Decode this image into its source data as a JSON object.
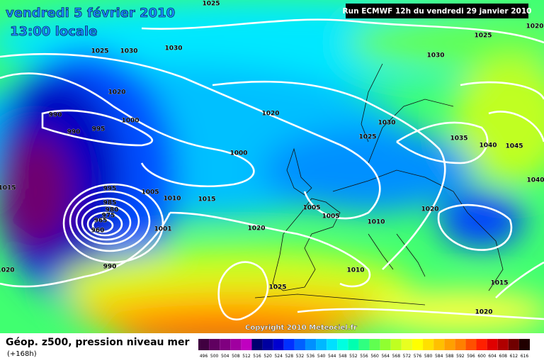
{
  "header": {
    "date": "vendredi 5 février 2010",
    "time": "13:00 locale",
    "run": "Run ECMWF 12h du vendredi 29 janvier 2010"
  },
  "copyright": "Copyright 2010 Meteociel.fr",
  "legend": {
    "title": "Géop. z500, pression niveau mer",
    "subtitle": "(+168h)",
    "scale": [
      496,
      500,
      504,
      508,
      512,
      516,
      520,
      524,
      528,
      532,
      536,
      540,
      544,
      548,
      552,
      556,
      560,
      564,
      568,
      572,
      576,
      580,
      584,
      588,
      592,
      596,
      600,
      604,
      608,
      612,
      616
    ],
    "colors": [
      "#400040",
      "#600060",
      "#800080",
      "#a000a0",
      "#c000c0",
      "#000070",
      "#0000a0",
      "#0000d0",
      "#0030ff",
      "#0060ff",
      "#0090ff",
      "#00b8ff",
      "#00e0ff",
      "#00ffe0",
      "#00ffb0",
      "#30ff80",
      "#60ff50",
      "#90ff30",
      "#c0ff20",
      "#e8ff20",
      "#ffff00",
      "#ffe000",
      "#ffc000",
      "#ffa000",
      "#ff8000",
      "#ff5000",
      "#ff2000",
      "#e00000",
      "#b00000",
      "#700000",
      "#200000"
    ]
  },
  "isobar_labels": [
    "1025",
    "1020",
    "1025",
    "1025",
    "1030",
    "1030",
    "1030",
    "1020",
    "990",
    "990",
    "995",
    "1000",
    "1020",
    "1030",
    "1025",
    "1035",
    "1040",
    "1045",
    "1000",
    "1015",
    "995",
    "985",
    "980",
    "975",
    "965",
    "960",
    "1005",
    "1010",
    "1015",
    "1005",
    "1005",
    "1020",
    "1010",
    "1001",
    "1020",
    "1040",
    "990",
    "1010",
    "1025",
    "1015",
    "1020",
    "1020"
  ]
}
